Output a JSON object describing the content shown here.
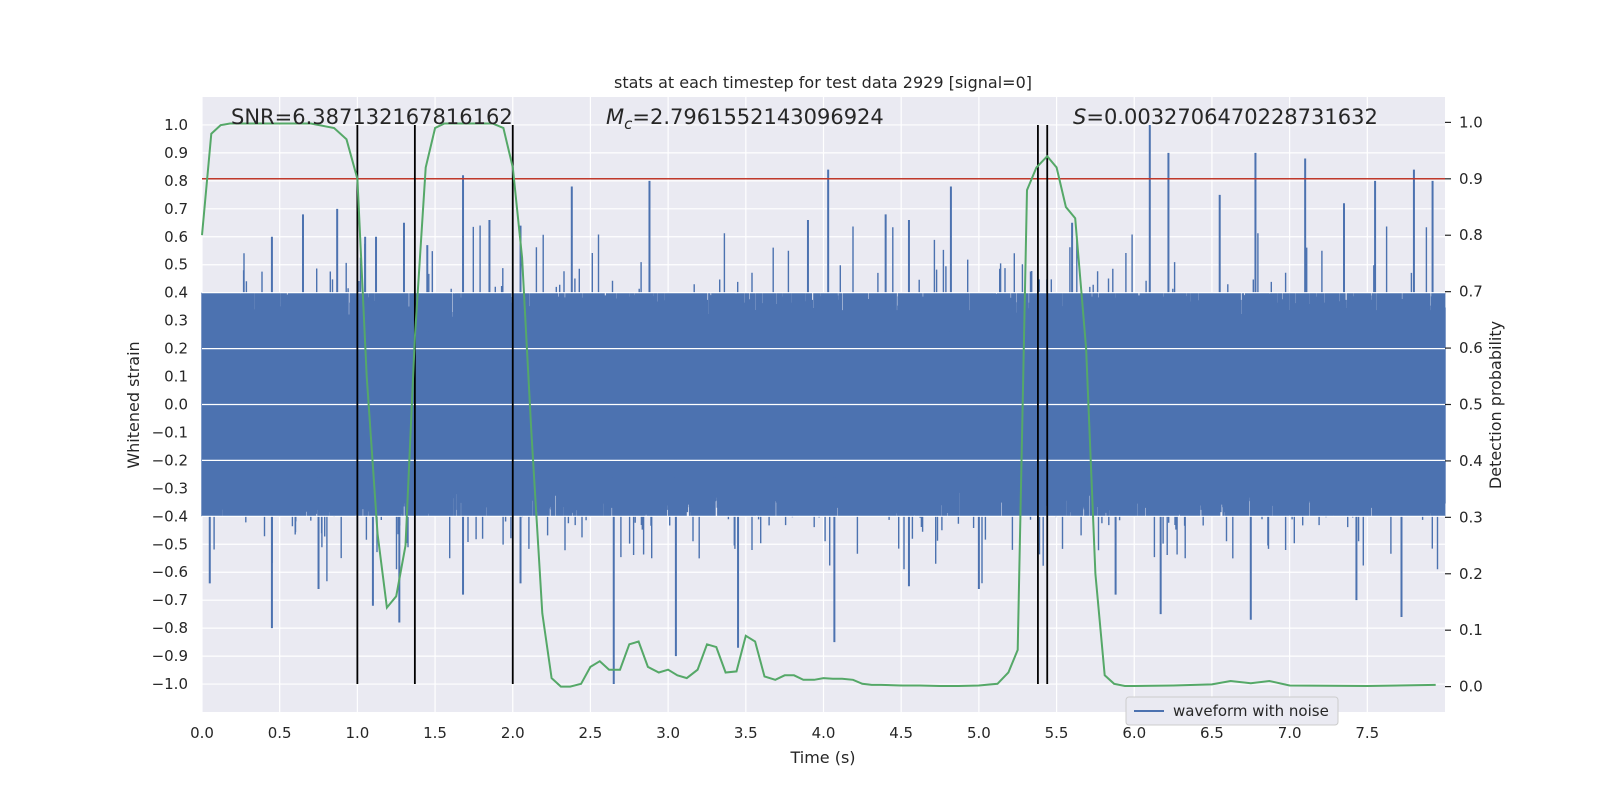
{
  "chart_data": {
    "type": "line",
    "title": "stats at each timestep for test data 2929 [signal=0]",
    "xlabel": "Time (s)",
    "ylabel": "Whitened strain",
    "y2label": "Detection probability",
    "xlim": [
      0.0,
      8.0
    ],
    "ylim": [
      -1.1,
      1.1
    ],
    "y2lim": [
      -0.045,
      1.045
    ],
    "x_ticks": [
      "0.0",
      "0.5",
      "1.0",
      "1.5",
      "2.0",
      "2.5",
      "3.0",
      "3.5",
      "4.0",
      "4.5",
      "5.0",
      "5.5",
      "6.0",
      "6.5",
      "7.0",
      "7.5"
    ],
    "y_ticks": [
      "1.0",
      "0.9",
      "0.8",
      "0.7",
      "0.6",
      "0.5",
      "0.4",
      "0.3",
      "0.2",
      "0.1",
      "0.0",
      "−0.1",
      "−0.2",
      "−0.3",
      "−0.4",
      "−0.5",
      "−0.6",
      "−0.7",
      "−0.8",
      "−0.9",
      "−1.0"
    ],
    "y2_ticks": [
      "1.0",
      "0.9",
      "0.8",
      "0.7",
      "0.6",
      "0.5",
      "0.4",
      "0.3",
      "0.2",
      "0.1",
      "0.0"
    ],
    "annotations": {
      "snr": "SNR=6.387132167816162",
      "mc_symbol": "M",
      "mc_sub": "c",
      "mc_value": "=2.7961552143096924",
      "s_symbol": "S",
      "s_value": "=0.0032706470228731632"
    },
    "legend": {
      "label": "waveform with noise",
      "location": "lower-right"
    },
    "threshold": {
      "y2": 0.9,
      "color": "#c0392b"
    },
    "vertical_lines": [
      1.0,
      1.37,
      2.0,
      5.38,
      5.44
    ],
    "noise": {
      "seed": 2929,
      "dt": 0.002,
      "envelope": 0.4,
      "peaks_max": 1.0,
      "peaks_min": -1.0
    },
    "series": [
      {
        "name": "Detection probability",
        "axis": "right",
        "color": "#55a868",
        "x": [
          0.0,
          0.06,
          0.12,
          0.18,
          0.25,
          0.3,
          0.5,
          0.7,
          0.85,
          0.93,
          1.0,
          1.06,
          1.13,
          1.19,
          1.25,
          1.31,
          1.37,
          1.44,
          1.5,
          1.56,
          1.62,
          1.75,
          1.87,
          1.94,
          2.0,
          2.06,
          2.12,
          2.19,
          2.25,
          2.31,
          2.37,
          2.44,
          2.5,
          2.56,
          2.62,
          2.69,
          2.75,
          2.81,
          2.87,
          2.94,
          3.0,
          3.06,
          3.12,
          3.19,
          3.25,
          3.31,
          3.37,
          3.44,
          3.5,
          3.56,
          3.62,
          3.69,
          3.75,
          3.81,
          3.87,
          3.94,
          4.0,
          4.06,
          4.12,
          4.19,
          4.25,
          4.31,
          4.37,
          4.5,
          4.62,
          4.75,
          4.87,
          5.0,
          5.12,
          5.19,
          5.25,
          5.31,
          5.37,
          5.44,
          5.5,
          5.56,
          5.62,
          5.69,
          5.75,
          5.81,
          5.87,
          5.94,
          6.0,
          6.25,
          6.5,
          6.62,
          6.75,
          6.87,
          7.0,
          7.5,
          7.94
        ],
        "values": [
          0.8,
          0.98,
          0.995,
          0.998,
          0.998,
          0.998,
          0.998,
          0.998,
          0.99,
          0.97,
          0.9,
          0.55,
          0.27,
          0.14,
          0.16,
          0.25,
          0.62,
          0.92,
          0.99,
          0.998,
          0.998,
          0.998,
          0.998,
          0.99,
          0.92,
          0.76,
          0.45,
          0.13,
          0.015,
          0.0,
          0.0,
          0.005,
          0.035,
          0.045,
          0.03,
          0.03,
          0.075,
          0.08,
          0.035,
          0.025,
          0.03,
          0.02,
          0.015,
          0.03,
          0.075,
          0.07,
          0.025,
          0.027,
          0.09,
          0.08,
          0.018,
          0.012,
          0.02,
          0.02,
          0.012,
          0.012,
          0.015,
          0.014,
          0.014,
          0.012,
          0.005,
          0.003,
          0.003,
          0.002,
          0.002,
          0.001,
          0.001,
          0.002,
          0.005,
          0.025,
          0.065,
          0.88,
          0.92,
          0.94,
          0.92,
          0.85,
          0.83,
          0.6,
          0.2,
          0.02,
          0.005,
          0.001,
          0.001,
          0.002,
          0.004,
          0.01,
          0.006,
          0.01,
          0.002,
          0.001,
          0.003
        ]
      },
      {
        "name": "waveform with noise",
        "axis": "left",
        "color": "#4c72b0",
        "peaks": [
          [
            0.45,
            0.6
          ],
          [
            0.65,
            0.68
          ],
          [
            0.87,
            0.7
          ],
          [
            1.05,
            0.6
          ],
          [
            1.12,
            0.6
          ],
          [
            1.3,
            0.65
          ],
          [
            1.45,
            0.57
          ],
          [
            1.68,
            0.82
          ],
          [
            1.85,
            0.66
          ],
          [
            2.05,
            0.64
          ],
          [
            2.38,
            0.78
          ],
          [
            2.88,
            0.8
          ],
          [
            3.9,
            0.66
          ],
          [
            4.03,
            0.84
          ],
          [
            4.4,
            0.68
          ],
          [
            4.55,
            0.66
          ],
          [
            4.82,
            0.78
          ],
          [
            5.6,
            0.65
          ],
          [
            6.1,
            1.0
          ],
          [
            6.22,
            0.9
          ],
          [
            6.55,
            0.75
          ],
          [
            6.78,
            0.9
          ],
          [
            7.1,
            0.88
          ],
          [
            7.35,
            0.72
          ],
          [
            7.55,
            0.8
          ],
          [
            7.8,
            0.84
          ],
          [
            7.92,
            0.8
          ],
          [
            0.05,
            -0.64
          ],
          [
            0.45,
            -0.8
          ],
          [
            0.75,
            -0.66
          ],
          [
            1.1,
            -0.72
          ],
          [
            1.27,
            -0.78
          ],
          [
            1.68,
            -0.68
          ],
          [
            2.05,
            -0.64
          ],
          [
            2.65,
            -1.0
          ],
          [
            3.05,
            -0.9
          ],
          [
            3.45,
            -0.87
          ],
          [
            4.07,
            -0.85
          ],
          [
            4.55,
            -0.65
          ],
          [
            5.0,
            -0.66
          ],
          [
            5.88,
            -0.68
          ],
          [
            6.17,
            -0.75
          ],
          [
            6.75,
            -0.77
          ],
          [
            7.43,
            -0.7
          ],
          [
            7.72,
            -0.76
          ]
        ]
      }
    ]
  }
}
